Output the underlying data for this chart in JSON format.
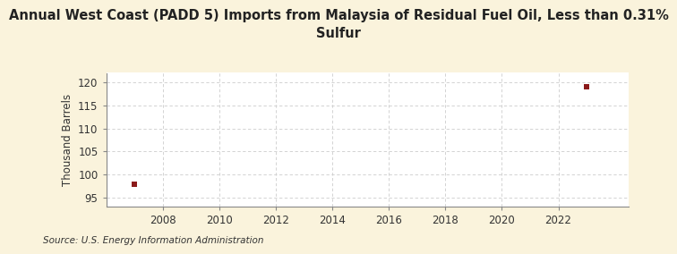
{
  "title": "Annual West Coast (PADD 5) Imports from Malaysia of Residual Fuel Oil, Less than 0.31%\nSulfur",
  "ylabel": "Thousand Barrels",
  "source": "Source: U.S. Energy Information Administration",
  "data_x": [
    2007,
    2023
  ],
  "data_y": [
    98,
    119
  ],
  "marker_color": "#8B1A1A",
  "marker_size": 4,
  "xlim": [
    2006.0,
    2024.5
  ],
  "ylim": [
    93,
    122
  ],
  "yticks": [
    95,
    100,
    105,
    110,
    115,
    120
  ],
  "xticks": [
    2008,
    2010,
    2012,
    2014,
    2016,
    2018,
    2020,
    2022
  ],
  "grid_color": "#CCCCCC",
  "bg_color": "#FAF3DC",
  "plot_bg_color": "#FFFFFF",
  "title_fontsize": 10.5,
  "label_fontsize": 8.5,
  "tick_fontsize": 8.5,
  "source_fontsize": 7.5
}
